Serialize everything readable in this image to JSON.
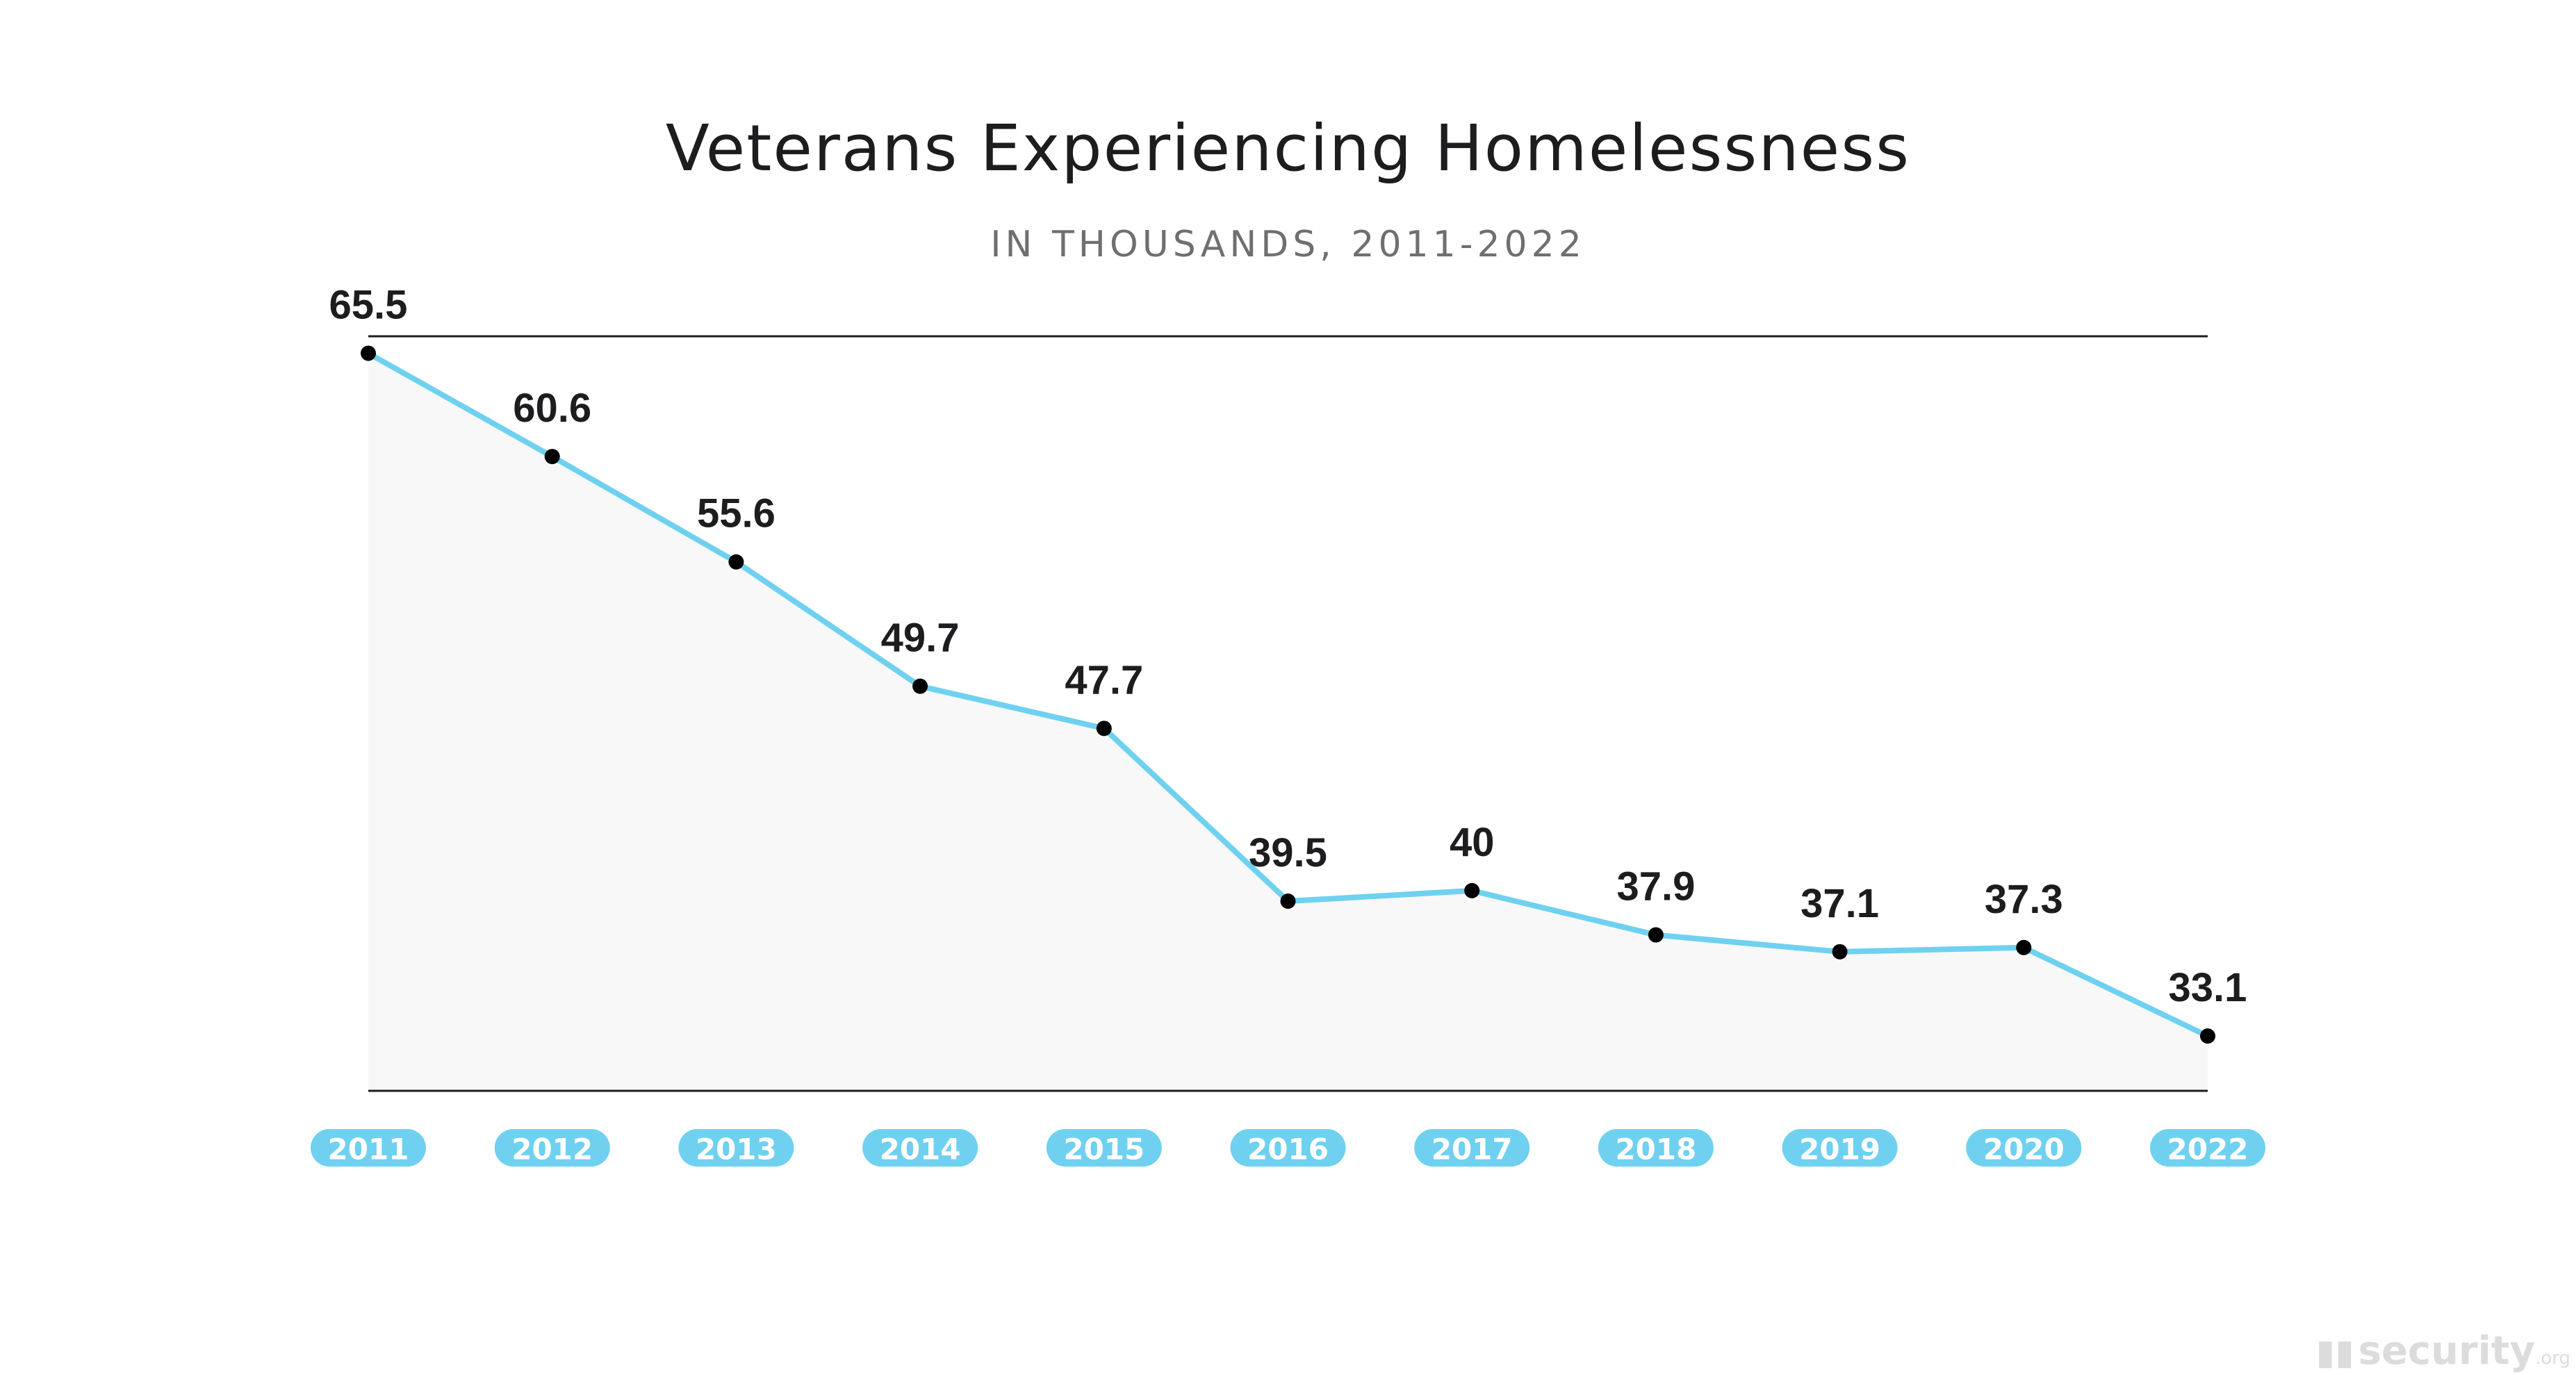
{
  "chart_data": {
    "type": "area",
    "title": "Veterans Experiencing Homelessness",
    "subtitle": "IN THOUSANDS, 2011-2022",
    "categories": [
      "2011",
      "2012",
      "2013",
      "2014",
      "2015",
      "2016",
      "2017",
      "2018",
      "2019",
      "2020",
      "2022"
    ],
    "values": [
      65.5,
      60.6,
      55.6,
      49.7,
      47.7,
      39.5,
      40,
      37.9,
      37.1,
      37.3,
      33.1
    ],
    "value_labels": [
      "65.5",
      "60.6",
      "55.6",
      "49.7",
      "47.7",
      "39.5",
      "40",
      "37.9",
      "37.1",
      "37.3",
      "33.1"
    ],
    "xlabel": "",
    "ylabel": "",
    "ylim": [
      30.5,
      76
    ],
    "grid": false,
    "legend": "none",
    "colors": {
      "line": "#6fd1ef",
      "area": "#f8f8f8",
      "point": "#000000",
      "tick_pill": "#6fd1ef",
      "tick_text": "#ffffff",
      "axis": "#1d1d1f"
    }
  },
  "watermark": {
    "icon": "security-logo-icon",
    "brand": "security",
    "tld": ".org"
  }
}
